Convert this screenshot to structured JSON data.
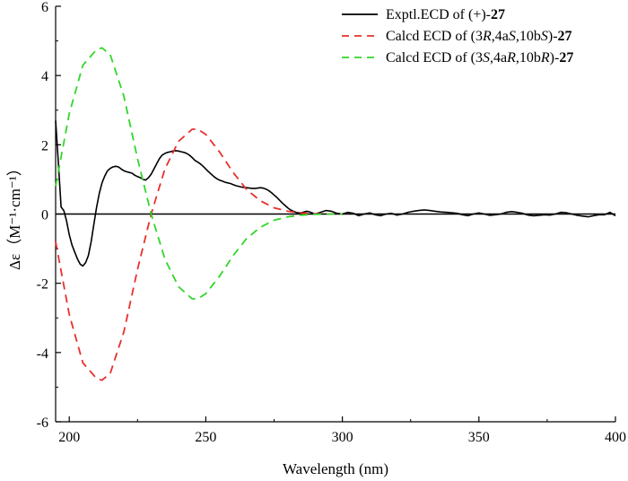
{
  "chart_data": {
    "type": "line",
    "title": "",
    "xlabel": "Wavelength (nm)",
    "ylabel": "Δε（M⁻¹·cm⁻¹）",
    "xlim": [
      195,
      400
    ],
    "ylim": [
      -6,
      6
    ],
    "xticks": [
      200,
      250,
      300,
      350,
      400
    ],
    "yticks": [
      -6,
      -4,
      -2,
      0,
      2,
      4,
      6
    ],
    "zero_line": true,
    "legend_position": "top-right",
    "series": [
      {
        "name": "Exptl.ECD of (+)-27",
        "legend_parts": [
          {
            "text": "Exptl.ECD of (+)-",
            "style": "normal"
          },
          {
            "text": "27",
            "style": "bold"
          }
        ],
        "color": "#000000",
        "dash": "solid",
        "x": [
          195,
          196,
          197,
          198,
          199,
          200,
          201,
          202,
          203,
          204,
          205,
          206,
          207,
          208,
          209,
          210,
          211,
          212,
          213,
          214,
          215,
          216,
          217,
          218,
          219,
          220,
          221,
          222,
          223,
          224,
          225,
          226,
          227,
          228,
          229,
          230,
          231,
          232,
          233,
          234,
          235,
          236,
          237,
          238,
          239,
          240,
          241,
          242,
          243,
          244,
          245,
          246,
          247,
          248,
          249,
          250,
          251,
          252,
          253,
          254,
          255,
          256,
          257,
          258,
          259,
          260,
          261,
          262,
          263,
          264,
          265,
          266,
          267,
          268,
          269,
          270,
          271,
          272,
          273,
          274,
          275,
          276,
          277,
          278,
          279,
          280,
          281,
          282,
          283,
          284,
          285,
          286,
          287,
          288,
          289,
          290,
          292,
          294,
          296,
          298,
          300,
          302,
          304,
          306,
          308,
          310,
          312,
          314,
          316,
          318,
          320,
          322,
          324,
          326,
          328,
          330,
          332,
          334,
          336,
          338,
          340,
          342,
          344,
          346,
          348,
          350,
          352,
          354,
          356,
          358,
          360,
          362,
          364,
          366,
          368,
          370,
          372,
          374,
          376,
          378,
          380,
          382,
          384,
          386,
          388,
          390,
          392,
          394,
          396,
          398,
          400
        ],
        "y": [
          2.7,
          1.5,
          0.2,
          0.1,
          -0.2,
          -0.6,
          -0.9,
          -1.1,
          -1.3,
          -1.45,
          -1.5,
          -1.4,
          -1.2,
          -0.8,
          -0.3,
          0.2,
          0.6,
          0.9,
          1.1,
          1.25,
          1.32,
          1.36,
          1.38,
          1.36,
          1.3,
          1.25,
          1.22,
          1.2,
          1.18,
          1.12,
          1.08,
          1.05,
          1.0,
          0.98,
          1.05,
          1.15,
          1.3,
          1.45,
          1.6,
          1.7,
          1.75,
          1.78,
          1.8,
          1.82,
          1.83,
          1.82,
          1.8,
          1.78,
          1.75,
          1.7,
          1.63,
          1.55,
          1.5,
          1.45,
          1.38,
          1.3,
          1.22,
          1.15,
          1.08,
          1.02,
          0.98,
          0.95,
          0.92,
          0.9,
          0.88,
          0.85,
          0.82,
          0.8,
          0.78,
          0.77,
          0.76,
          0.75,
          0.74,
          0.74,
          0.75,
          0.76,
          0.75,
          0.72,
          0.68,
          0.62,
          0.55,
          0.48,
          0.4,
          0.32,
          0.25,
          0.18,
          0.12,
          0.08,
          0.05,
          0.03,
          0.04,
          0.06,
          0.08,
          0.06,
          0.03,
          0.0,
          0.05,
          0.1,
          0.08,
          0.02,
          0.0,
          0.05,
          0.02,
          -0.05,
          0.0,
          0.03,
          -0.02,
          -0.05,
          0.0,
          0.02,
          -0.03,
          0.0,
          0.05,
          0.08,
          0.1,
          0.12,
          0.1,
          0.08,
          0.06,
          0.05,
          0.04,
          0.02,
          -0.02,
          -0.05,
          0.0,
          0.03,
          0.0,
          -0.04,
          -0.02,
          0.0,
          0.05,
          0.07,
          0.05,
          0.02,
          -0.03,
          -0.05,
          -0.04,
          -0.02,
          -0.03,
          0.0,
          0.05,
          0.04,
          0.0,
          -0.04,
          -0.06,
          -0.08,
          -0.05,
          -0.02,
          -0.02,
          0.05,
          -0.05
        ]
      },
      {
        "name": "Calcd ECD of (3R,4aS,10bS)-27",
        "legend_parts": [
          {
            "text": "Calcd ECD of (3",
            "style": "normal"
          },
          {
            "text": "R",
            "style": "italic"
          },
          {
            "text": ",4a",
            "style": "normal"
          },
          {
            "text": "S",
            "style": "italic"
          },
          {
            "text": ",10b",
            "style": "normal"
          },
          {
            "text": "S",
            "style": "italic"
          },
          {
            "text": ")-",
            "style": "normal"
          },
          {
            "text": "27",
            "style": "bold"
          }
        ],
        "color": "#e8302c",
        "dash": "dashed",
        "x": [
          195,
          200,
          205,
          210,
          212,
          215,
          220,
          225,
          230,
          235,
          240,
          245,
          247,
          250,
          255,
          260,
          265,
          270,
          275,
          280,
          285,
          290,
          295,
          300
        ],
        "y": [
          -0.8,
          -2.9,
          -4.3,
          -4.75,
          -4.8,
          -4.6,
          -3.4,
          -1.6,
          0.0,
          1.3,
          2.1,
          2.45,
          2.45,
          2.3,
          1.8,
          1.2,
          0.7,
          0.38,
          0.18,
          0.08,
          0.03,
          0.01,
          0.0,
          0.0
        ]
      },
      {
        "name": "Calcd ECD of (3S,4aR,10bR)-27",
        "legend_parts": [
          {
            "text": "Calcd ECD of (3",
            "style": "normal"
          },
          {
            "text": "S",
            "style": "italic"
          },
          {
            "text": ",4a",
            "style": "normal"
          },
          {
            "text": "R",
            "style": "italic"
          },
          {
            "text": ",10b",
            "style": "normal"
          },
          {
            "text": "R",
            "style": "italic"
          },
          {
            "text": ")-",
            "style": "normal"
          },
          {
            "text": "27",
            "style": "bold"
          }
        ],
        "color": "#32d62a",
        "dash": "dashed",
        "x": [
          195,
          200,
          205,
          210,
          212,
          215,
          220,
          225,
          230,
          235,
          240,
          245,
          247,
          250,
          255,
          260,
          265,
          270,
          275,
          280,
          285,
          290,
          295,
          300
        ],
        "y": [
          0.8,
          2.9,
          4.3,
          4.75,
          4.8,
          4.6,
          3.4,
          1.6,
          0.0,
          -1.3,
          -2.1,
          -2.45,
          -2.45,
          -2.3,
          -1.8,
          -1.2,
          -0.7,
          -0.38,
          -0.18,
          -0.08,
          -0.03,
          -0.01,
          0.0,
          0.0
        ]
      }
    ]
  }
}
